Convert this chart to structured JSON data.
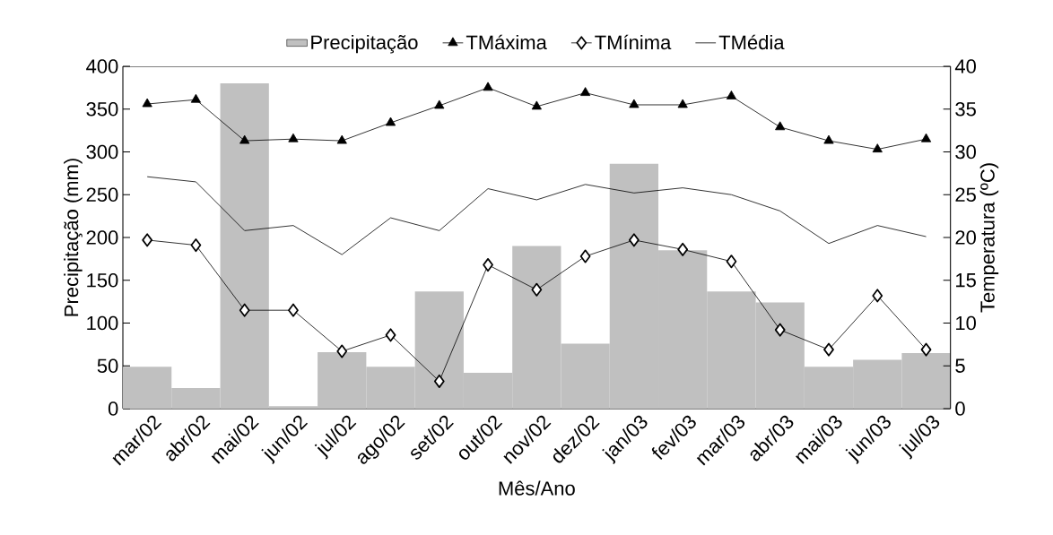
{
  "chart_data": {
    "type": "bar",
    "xlabel": "Mês/Ano",
    "ylabel": "Precipitação (mm)",
    "y2label": "Temperatura (ºC)",
    "categories": [
      "mar/02",
      "abr/02",
      "mai/02",
      "jun/02",
      "jul/02",
      "ago/02",
      "set/02",
      "out/02",
      "nov/02",
      "dez/02",
      "jan/03",
      "fev/03",
      "mar/03",
      "abr/03",
      "mai/03",
      "jun/03",
      "jul/03"
    ],
    "series": [
      {
        "name": "Precipitação",
        "color": "#c0c0c0",
        "values": [
          49,
          24,
          380,
          3,
          66,
          49,
          137,
          42,
          190,
          76,
          286,
          185,
          137,
          124,
          49,
          57,
          65
        ]
      },
      {
        "name": "TMáxima",
        "type": "line",
        "axis": "y2",
        "marker": "triangle",
        "color": "#000000",
        "values": [
          35.6,
          36.1,
          31.3,
          31.5,
          31.3,
          33.4,
          35.4,
          37.5,
          35.3,
          36.9,
          35.5,
          35.5,
          36.5,
          32.9,
          31.3,
          30.3,
          31.5
        ]
      },
      {
        "name": "TMínima",
        "type": "line",
        "axis": "y2",
        "marker": "diamond",
        "color": "#000000",
        "values": [
          19.7,
          19.1,
          11.5,
          11.5,
          6.7,
          8.6,
          3.2,
          16.8,
          13.9,
          17.8,
          19.7,
          18.6,
          17.2,
          9.2,
          6.9,
          13.2,
          6.9
        ]
      },
      {
        "name": "TMédia",
        "type": "line",
        "axis": "y2",
        "marker": "none",
        "color": "#000000",
        "values": [
          27.1,
          26.5,
          20.8,
          21.4,
          18.0,
          22.3,
          20.8,
          25.7,
          24.4,
          26.2,
          25.2,
          25.8,
          25.0,
          23.1,
          19.3,
          21.4,
          20.1
        ]
      }
    ],
    "ylim": [
      0,
      400
    ],
    "yticks": [
      0,
      50,
      100,
      150,
      200,
      250,
      300,
      350,
      400
    ],
    "y2lim": [
      0,
      40
    ],
    "y2ticks": [
      0,
      5,
      10,
      15,
      20,
      25,
      30,
      35,
      40
    ],
    "grid": false,
    "legend": "top"
  }
}
